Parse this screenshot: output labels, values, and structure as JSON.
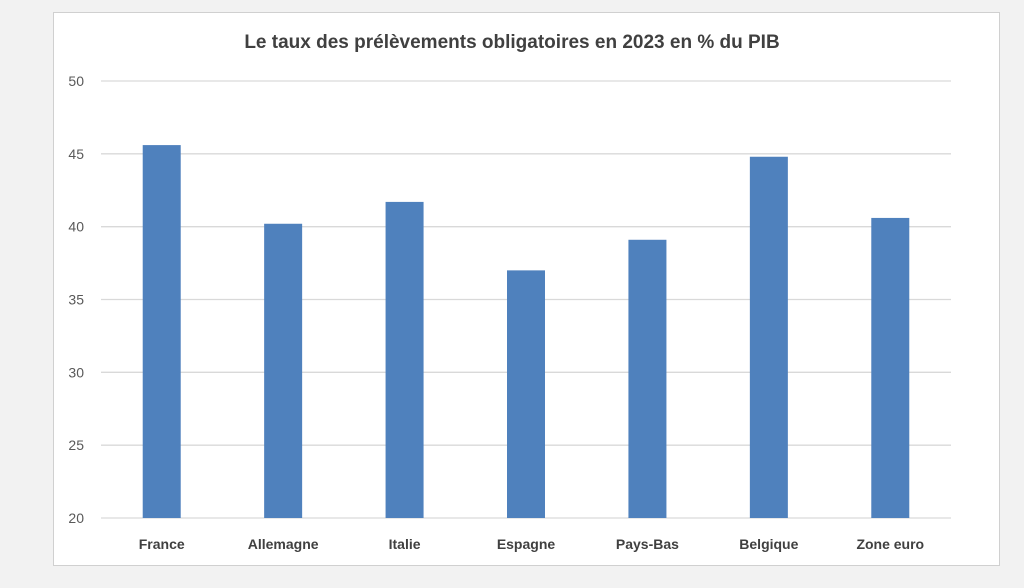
{
  "chart_data": {
    "type": "bar",
    "title": "Le taux des prélèvements obligatoires en 2023 en % du PIB",
    "xlabel": "",
    "ylabel": "",
    "categories": [
      "France",
      "Allemagne",
      "Italie",
      "Espagne",
      "Pays-Bas",
      "Belgique",
      "Zone euro"
    ],
    "values": [
      45.6,
      40.2,
      41.7,
      37.0,
      39.1,
      44.8,
      40.6
    ],
    "ylim": [
      20,
      50
    ],
    "yticks": [
      20,
      25,
      30,
      35,
      40,
      45,
      50
    ],
    "grid": true,
    "bar_color": "#4f81bd"
  }
}
